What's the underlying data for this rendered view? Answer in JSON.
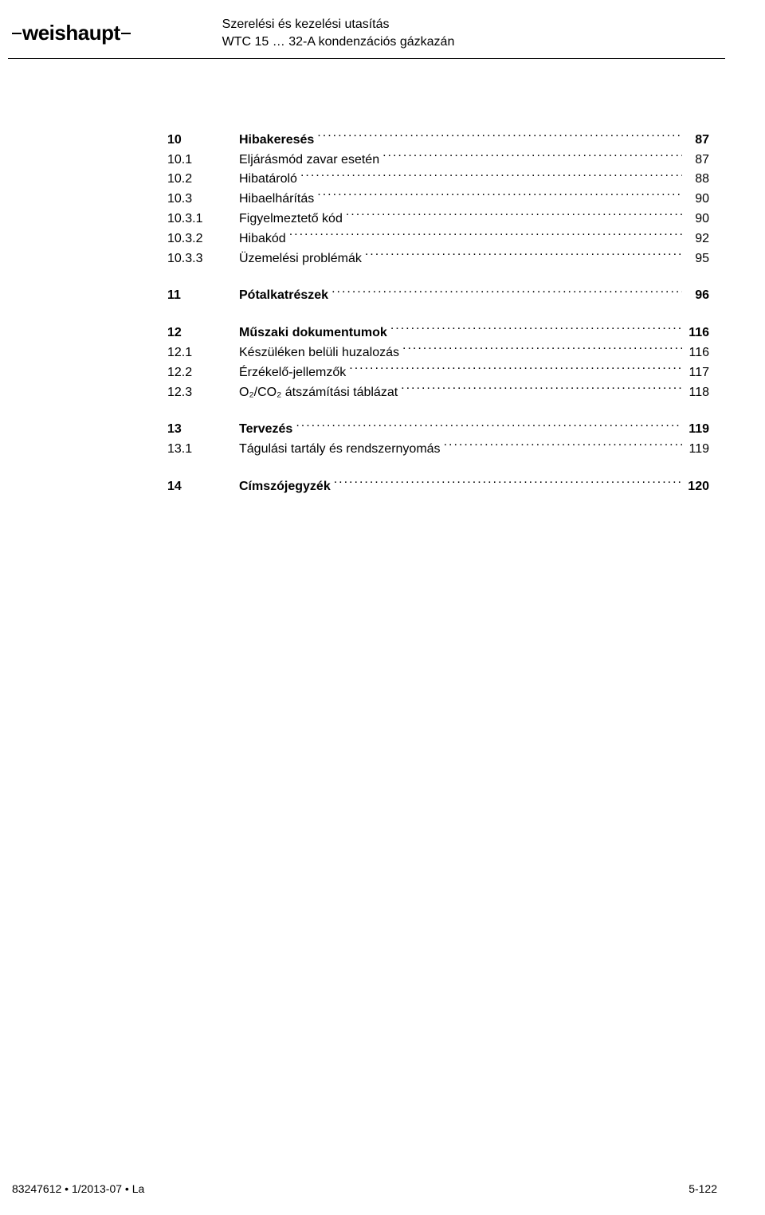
{
  "header": {
    "brand": "weishaupt",
    "line1": "Szerelési és kezelési utasítás",
    "line2": "WTC 15 … 32-A kondenzációs gázkazán"
  },
  "toc": [
    {
      "rows": [
        {
          "num": "10",
          "title": "Hibakeresés",
          "page": "87",
          "bold": true
        },
        {
          "num": "10.1",
          "title": "Eljárásmód zavar esetén",
          "page": "87",
          "bold": false
        },
        {
          "num": "10.2",
          "title": "Hibatároló",
          "page": "88",
          "bold": false
        },
        {
          "num": "10.3",
          "title": "Hibaelhárítás",
          "page": "90",
          "bold": false
        },
        {
          "num": "10.3.1",
          "title": "Figyelmeztető kód",
          "page": "90",
          "bold": false
        },
        {
          "num": "10.3.2",
          "title": "Hibakód",
          "page": "92",
          "bold": false
        },
        {
          "num": "10.3.3",
          "title": "Üzemelési problémák",
          "page": "95",
          "bold": false
        }
      ]
    },
    {
      "rows": [
        {
          "num": "11",
          "title": "Pótalkatrészek",
          "page": "96",
          "bold": true
        }
      ]
    },
    {
      "rows": [
        {
          "num": "12",
          "title": "Műszaki dokumentumok",
          "page": "116",
          "bold": true
        },
        {
          "num": "12.1",
          "title": "Készüléken belüli huzalozás",
          "page": "116",
          "bold": false
        },
        {
          "num": "12.2",
          "title": "Érzékelő-jellemzők",
          "page": "117",
          "bold": false
        },
        {
          "num": "12.3",
          "title": "O₂/CO₂ átszámítási táblázat",
          "page": "118",
          "bold": false
        }
      ]
    },
    {
      "rows": [
        {
          "num": "13",
          "title": "Tervezés",
          "page": "119",
          "bold": true
        },
        {
          "num": "13.1",
          "title": "Tágulási tartály és rendszernyomás",
          "page": "119",
          "bold": false
        }
      ]
    },
    {
      "rows": [
        {
          "num": "14",
          "title": "Címszójegyzék",
          "page": "120",
          "bold": true
        }
      ]
    }
  ],
  "footer": {
    "left": "83247612 • 1/2013-07 • La",
    "center": "5-122"
  }
}
